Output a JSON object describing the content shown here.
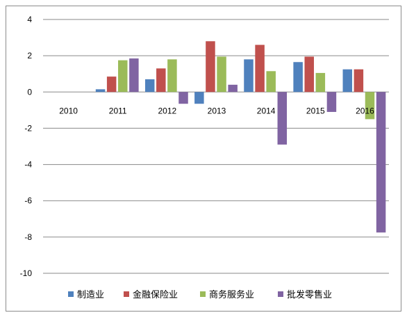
{
  "chart_data": {
    "type": "bar",
    "title": "",
    "xlabel": "",
    "ylabel": "",
    "categories": [
      "2010",
      "2011",
      "2012",
      "2013",
      "2014",
      "2015",
      "2016"
    ],
    "series": [
      {
        "name": "制造业",
        "color": "#4f81bd",
        "values": [
          0,
          0.15,
          0.7,
          -0.65,
          1.8,
          1.65,
          1.25
        ]
      },
      {
        "name": "金融保险业",
        "color": "#c0504d",
        "values": [
          0,
          0.85,
          1.3,
          2.8,
          2.6,
          1.95,
          1.25
        ]
      },
      {
        "name": "商务服务业",
        "color": "#9bbb59",
        "values": [
          0,
          1.75,
          1.8,
          1.95,
          1.15,
          1.05,
          -1.5
        ]
      },
      {
        "name": "批发零售业",
        "color": "#8064a2",
        "values": [
          0,
          1.85,
          -0.65,
          0.4,
          -2.9,
          -1.1,
          -7.75
        ]
      }
    ],
    "ylim": [
      -10,
      4
    ],
    "yticks": [
      "4",
      "2",
      "0",
      "-2",
      "-4",
      "-6",
      "-8",
      "-10"
    ],
    "grid": true,
    "legend_position": "bottom"
  }
}
